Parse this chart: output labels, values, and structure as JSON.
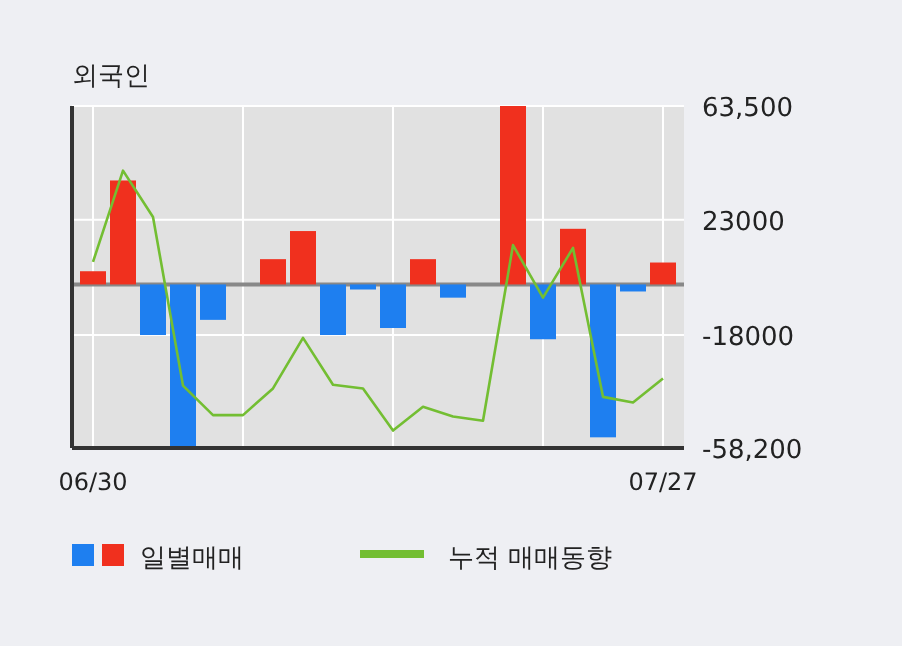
{
  "chart_data": {
    "type": "bar",
    "title": "외국인",
    "categories": [
      "06/30",
      null,
      null,
      null,
      null,
      null,
      null,
      null,
      null,
      null,
      null,
      null,
      null,
      null,
      null,
      null,
      null,
      null,
      null,
      "07/27"
    ],
    "series": [
      {
        "name": "일별매매",
        "colors": [
          "#f0301e",
          "#f0301e",
          "#1e7ff0",
          "#1e7ff0",
          "#1e7ff0",
          "#f0301e",
          "#f0301e",
          "#f0301e",
          "#1e7ff0",
          "#1e7ff0",
          "#1e7ff0",
          "#f0301e",
          "#1e7ff0",
          "#f0301e",
          "#f0301e",
          "#1e7ff0",
          "#f0301e",
          "#1e7ff0",
          "#1e7ff0",
          "#f0301e"
        ],
        "values": [
          4700,
          37000,
          -18000,
          -58000,
          -12600,
          0,
          9000,
          19000,
          -18000,
          -1800,
          -15500,
          9000,
          -4700,
          0,
          63500,
          -19500,
          19800,
          -54400,
          -2500,
          7800
        ]
      },
      {
        "name": "누적 매매동향",
        "type": "line",
        "color": "#73be32",
        "values": [
          8000,
          40500,
          24000,
          -36000,
          -46500,
          -46500,
          -37000,
          -19000,
          -35700,
          -37000,
          -52000,
          -43500,
          -47000,
          -48500,
          14000,
          -4700,
          13000,
          -40000,
          -42000,
          -33500
        ]
      }
    ],
    "ylim": [
      -58200,
      63500
    ],
    "yticks": [
      {
        "value": 63500,
        "label": "63,500"
      },
      23000,
      -18000,
      {
        "value": -58200,
        "label": "-58,200"
      }
    ],
    "ref_lines": [
      {
        "axis": "y",
        "value": 0,
        "color": "#888888"
      }
    ],
    "grid": true,
    "legend": "bottom",
    "line_style": "solid",
    "marker": "none"
  }
}
